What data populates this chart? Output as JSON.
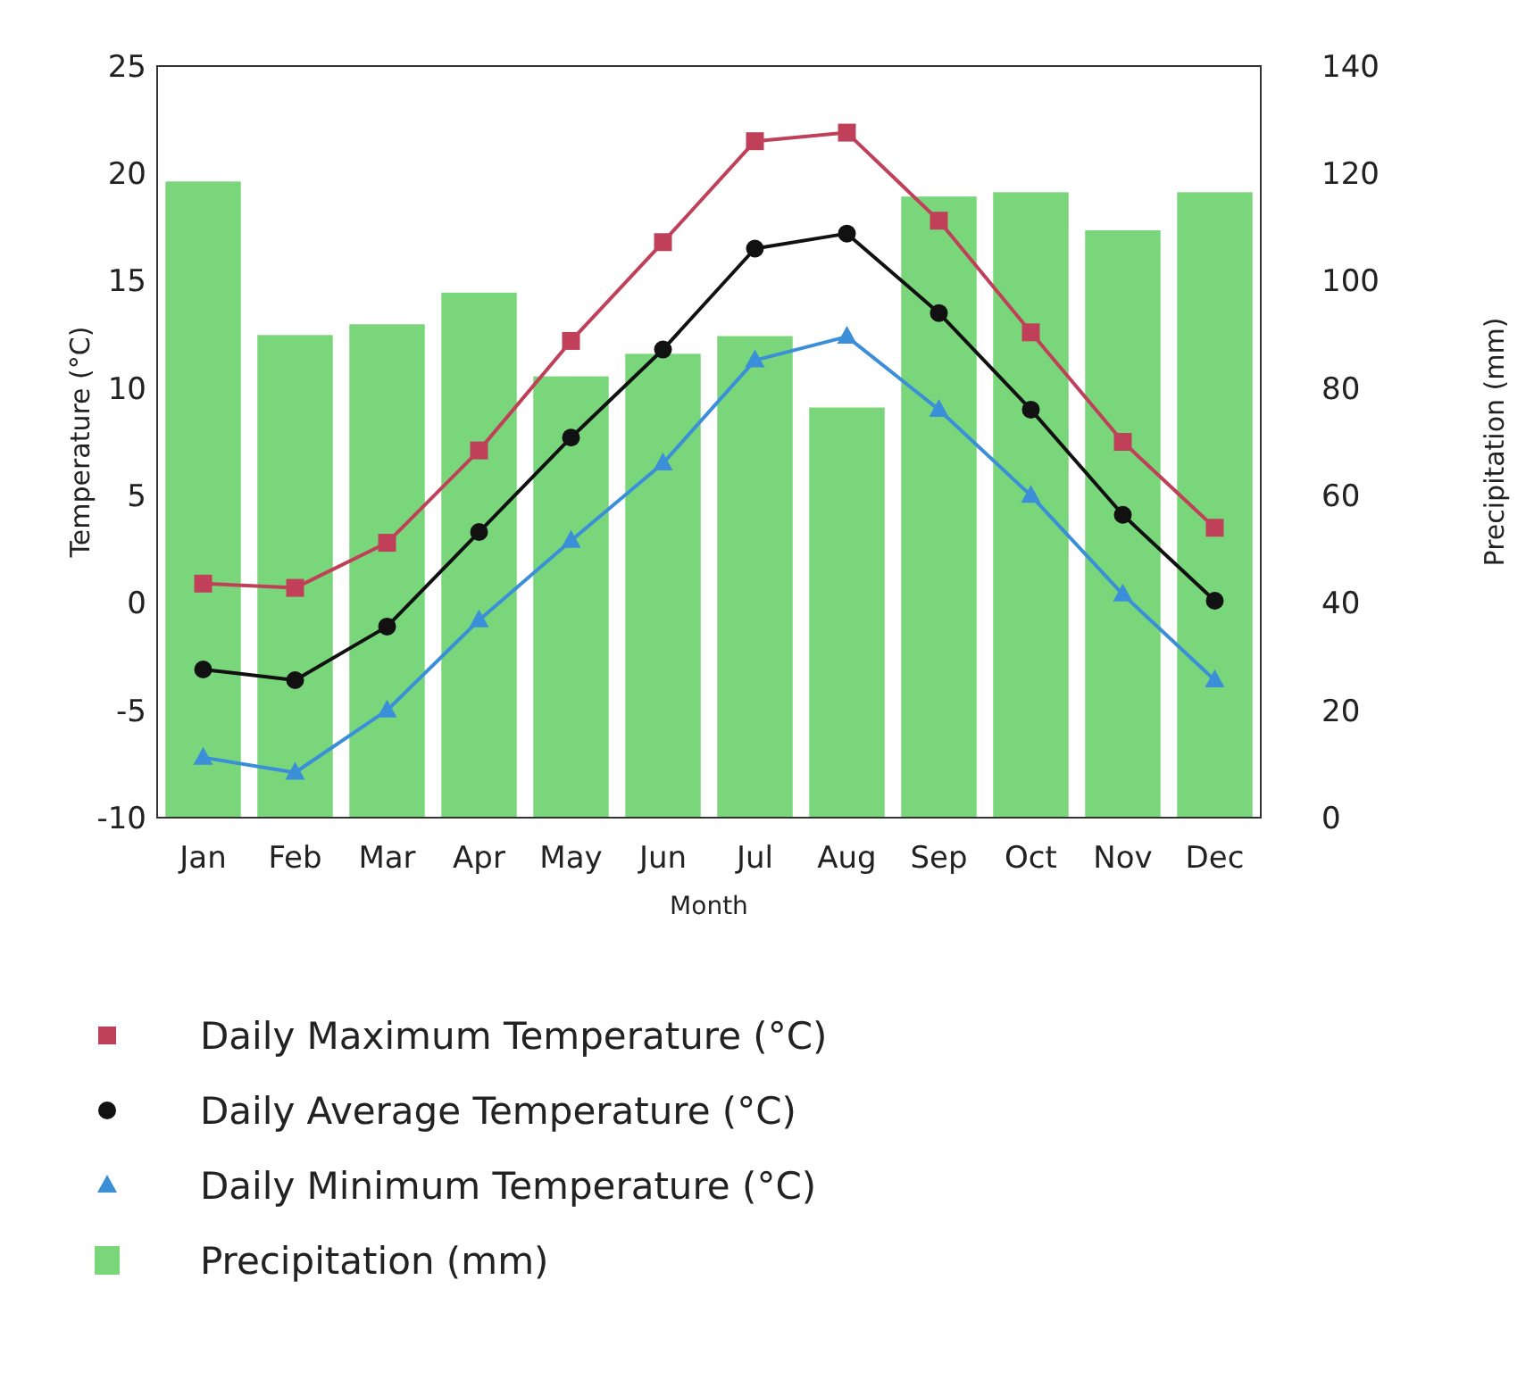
{
  "chart_data": {
    "type": "bar",
    "xlabel": "Month",
    "ylabel": "Temperature (°C)",
    "y2label": "Precipitation (mm)",
    "categories": [
      "Jan",
      "Feb",
      "Mar",
      "Apr",
      "May",
      "Jun",
      "Jul",
      "Aug",
      "Sep",
      "Oct",
      "Nov",
      "Dec"
    ],
    "ylim": [
      -10,
      25
    ],
    "yticks": [
      -10,
      -5,
      0,
      5,
      10,
      15,
      20,
      25
    ],
    "y2lim": [
      0,
      140
    ],
    "y2ticks": [
      0,
      20,
      40,
      60,
      80,
      100,
      120,
      140
    ],
    "grid": false,
    "legend": "bottom",
    "series": [
      {
        "name": "Precipitation (mm)",
        "axis": "y2",
        "color": "#7ad67a",
        "values": [
          118.5,
          89.9,
          91.9,
          97.8,
          82.2,
          86.4,
          89.7,
          76.4,
          115.7,
          116.5,
          109.4,
          116.5
        ]
      },
      {
        "name": "Daily Maximum Temperature (°C)",
        "type": "line",
        "marker": "square",
        "color": "#c0405a",
        "values": [
          0.9,
          0.7,
          2.8,
          7.1,
          12.2,
          16.8,
          21.5,
          21.9,
          17.8,
          12.6,
          7.5,
          3.5
        ]
      },
      {
        "name": "Daily Average Temperature (°C)",
        "type": "line",
        "marker": "circle",
        "color": "#111111",
        "values": [
          -3.1,
          -3.6,
          -1.1,
          3.3,
          7.7,
          11.8,
          16.5,
          17.2,
          13.5,
          9.0,
          4.1,
          0.1
        ]
      },
      {
        "name": "Daily Minimum Temperature (°C)",
        "type": "line",
        "marker": "triangle",
        "color": "#3b8fd9",
        "values": [
          -7.2,
          -7.9,
          -5.0,
          -0.8,
          2.9,
          6.5,
          11.3,
          12.4,
          9.0,
          5.0,
          0.4,
          -3.6
        ]
      }
    ]
  }
}
